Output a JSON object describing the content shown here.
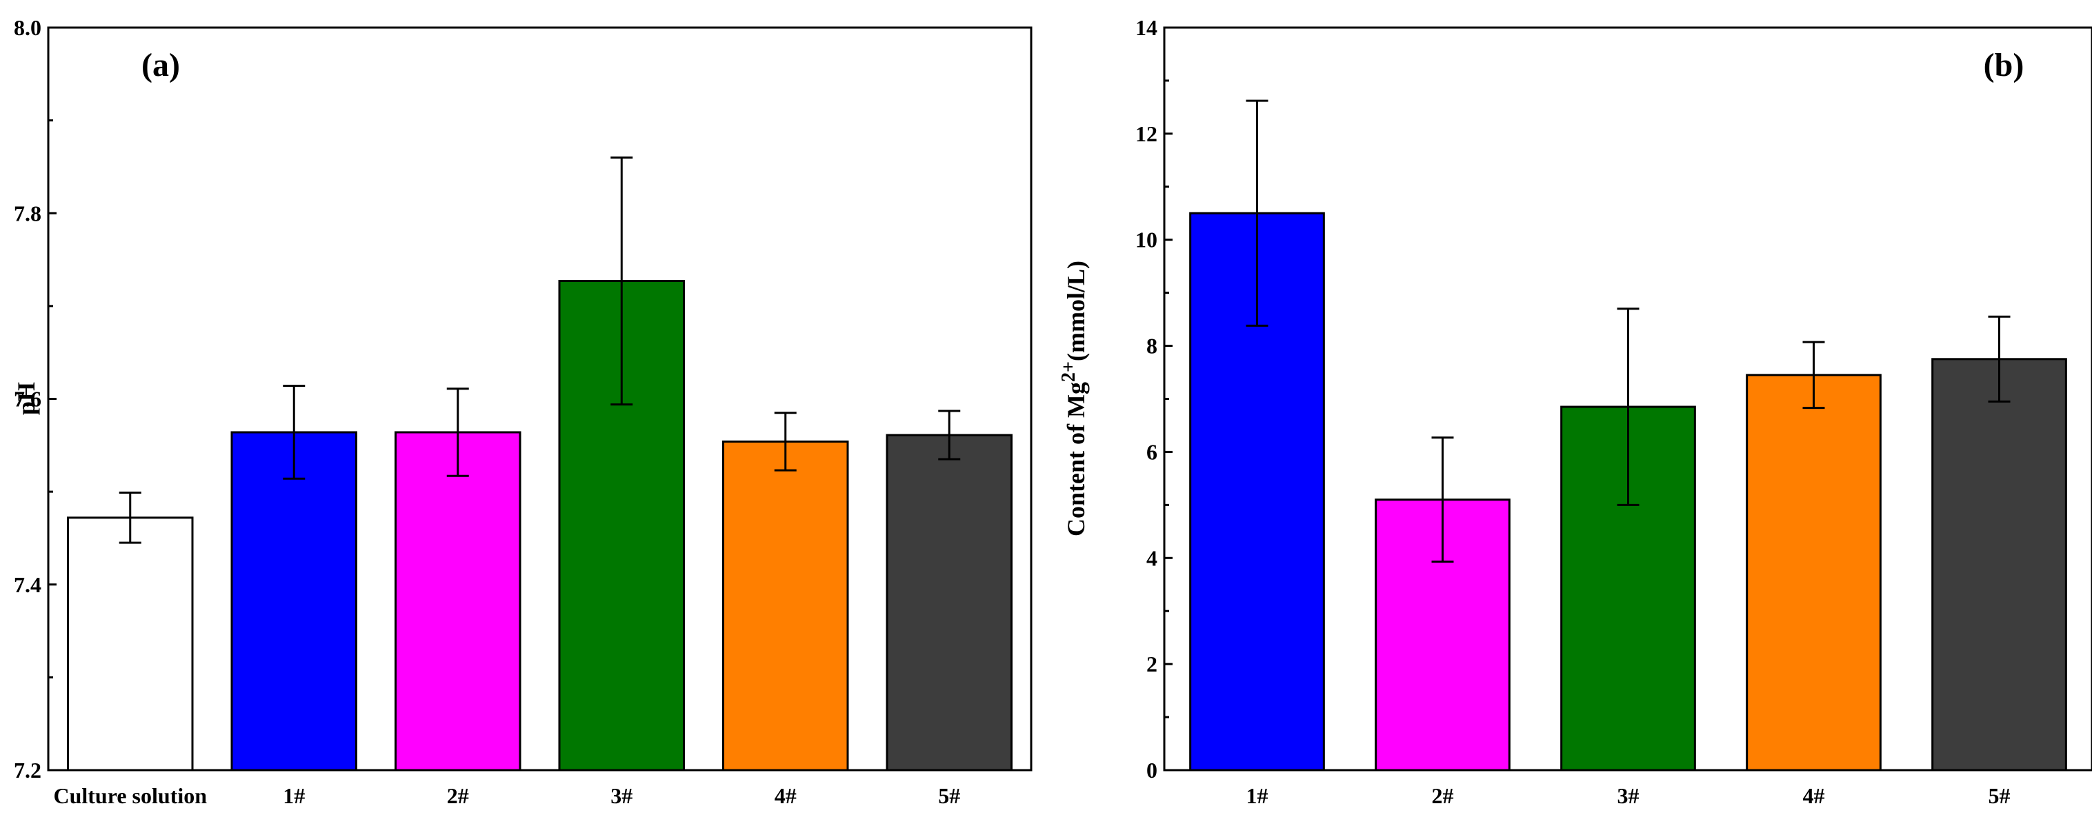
{
  "chart_data": [
    {
      "panel": "(a)",
      "type": "bar",
      "title": "",
      "xlabel": "",
      "ylabel": "pH",
      "ylim": [
        7.2,
        8.0
      ],
      "yticks": [
        "7.2",
        "7.4",
        "7.6",
        "7.8",
        "8.0"
      ],
      "categories": [
        "Culture solution",
        "1#",
        "2#",
        "3#",
        "4#",
        "5#"
      ],
      "values": [
        7.472,
        7.564,
        7.564,
        7.727,
        7.554,
        7.561
      ],
      "errors": [
        0.027,
        0.05,
        0.047,
        0.133,
        0.031,
        0.026
      ],
      "colors": [
        "#ffffff",
        "#0000ff",
        "#ff00ff",
        "#007700",
        "#ff7f00",
        "#3d3d3d"
      ]
    },
    {
      "panel": "(b)",
      "type": "bar",
      "title": "",
      "xlabel": "",
      "ylabel_main": "Content of Mg",
      "ylabel_sup": "2+",
      "ylabel_unit": "(mmol/L)",
      "ylim": [
        0,
        14
      ],
      "yticks": [
        "0",
        "2",
        "4",
        "6",
        "8",
        "10",
        "12",
        "14"
      ],
      "categories": [
        "1#",
        "2#",
        "3#",
        "4#",
        "5#"
      ],
      "values": [
        10.5,
        5.1,
        6.85,
        7.45,
        7.75
      ],
      "errors": [
        2.12,
        1.17,
        1.85,
        0.62,
        0.8
      ],
      "colors": [
        "#0000ff",
        "#ff00ff",
        "#007700",
        "#ff7f00",
        "#3d3d3d"
      ]
    }
  ]
}
